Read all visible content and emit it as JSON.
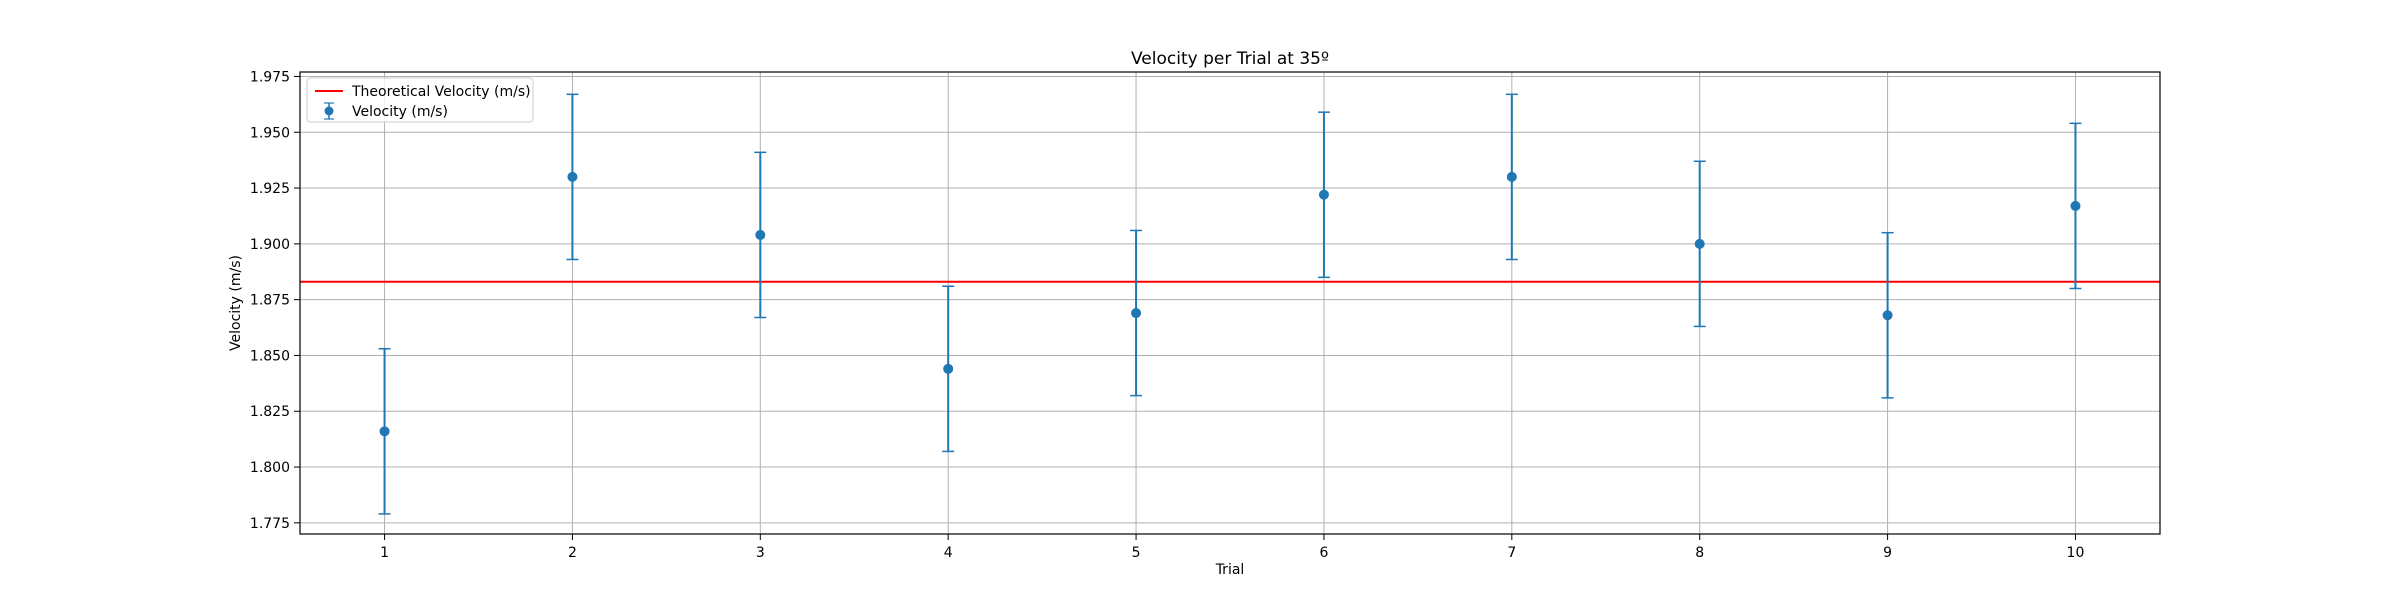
{
  "chart_data": {
    "type": "scatter",
    "title": "Velocity per Trial at 35º",
    "xlabel": "Trial",
    "ylabel": "Velocity (m/s)",
    "x": [
      1,
      2,
      3,
      4,
      5,
      6,
      7,
      8,
      9,
      10
    ],
    "xlim": [
      0.55,
      10.45
    ],
    "ylim": [
      1.77,
      1.977
    ],
    "y_ticks": [
      "1.775",
      "1.800",
      "1.825",
      "1.850",
      "1.875",
      "1.900",
      "1.925",
      "1.950",
      "1.975"
    ],
    "x_ticks": [
      "1",
      "2",
      "3",
      "4",
      "5",
      "6",
      "7",
      "8",
      "9",
      "10"
    ],
    "grid": true,
    "legend_position": "top-left",
    "series": [
      {
        "name": "Velocity (m/s)",
        "kind": "errorbar",
        "color": "#1f77b4",
        "values": [
          1.816,
          1.93,
          1.904,
          1.844,
          1.869,
          1.922,
          1.93,
          1.9,
          1.868,
          1.917
        ],
        "error": [
          0.037,
          0.037,
          0.037,
          0.037,
          0.037,
          0.037,
          0.037,
          0.037,
          0.037,
          0.037
        ]
      }
    ],
    "reference_lines": [
      {
        "name": "Theoretical Velocity (m/s)",
        "value": 1.883,
        "color": "#ff0000"
      }
    ]
  }
}
